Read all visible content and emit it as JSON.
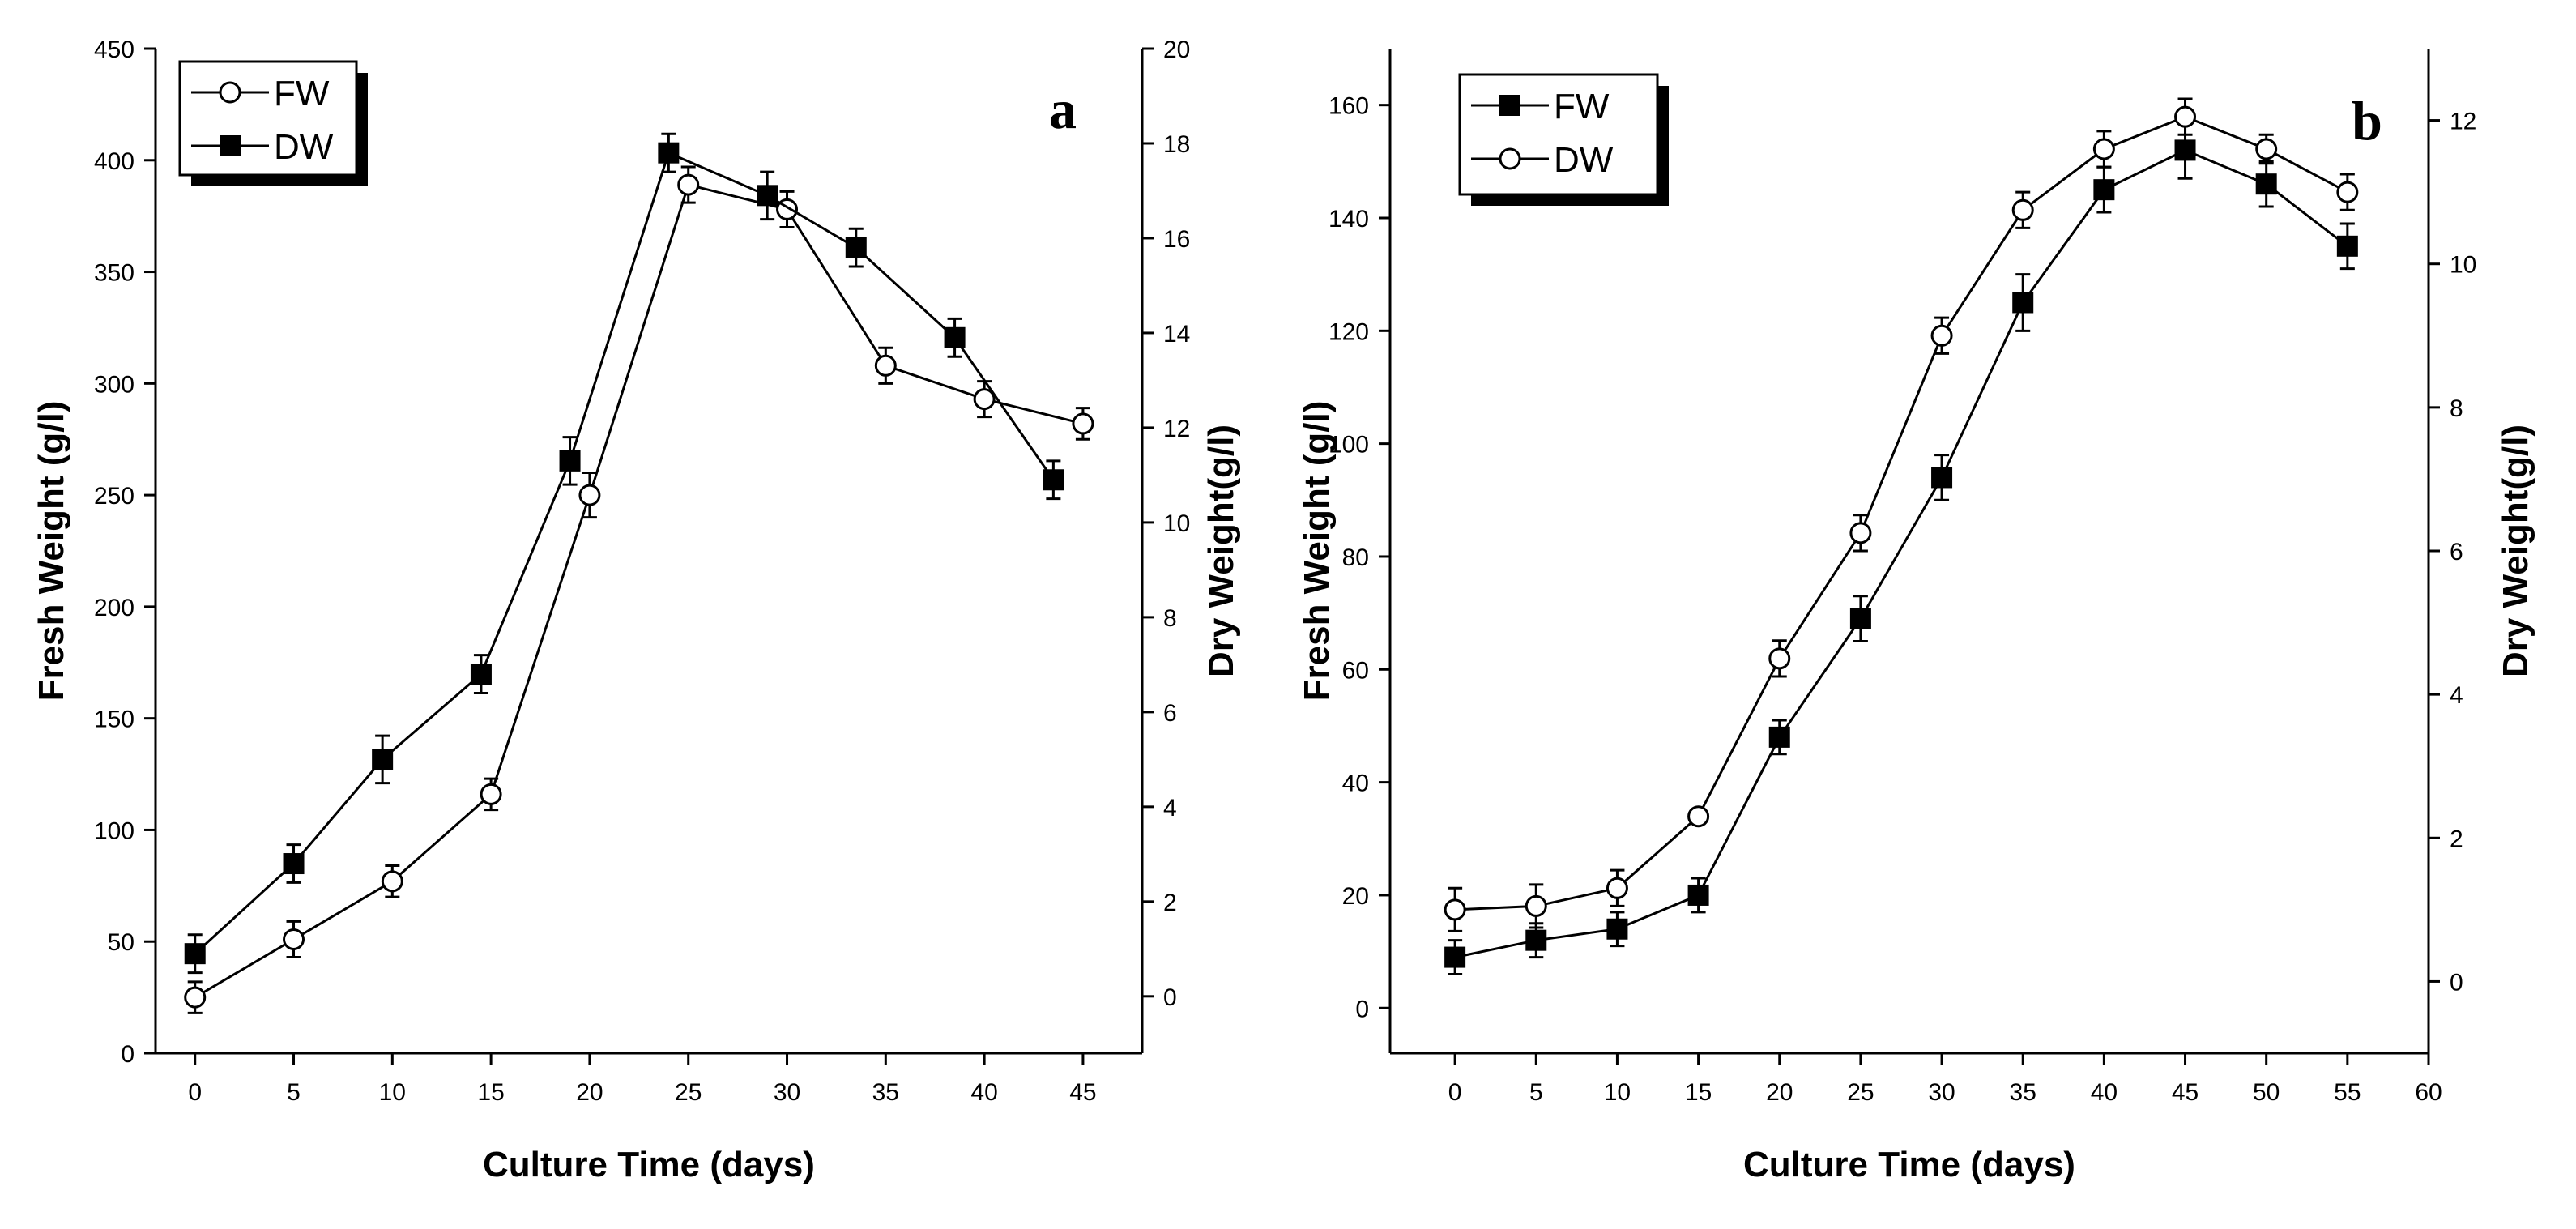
{
  "chart_data": [
    {
      "type": "line",
      "panel_label": "a",
      "xlabel": "Culture Time (days)",
      "ylabel": "Fresh Weight (g/l)",
      "y2label": "Dry Weight(g/l)",
      "xlim": [
        -2,
        48
      ],
      "ylim": [
        0,
        450
      ],
      "y2lim": [
        -1.2,
        20
      ],
      "x_ticks": [
        0,
        5,
        10,
        15,
        20,
        25,
        30,
        35,
        40,
        45
      ],
      "y_ticks": [
        0,
        50,
        100,
        150,
        200,
        250,
        300,
        350,
        400,
        450
      ],
      "y2_ticks": [
        0,
        2,
        4,
        6,
        8,
        10,
        12,
        14,
        16,
        18,
        20
      ],
      "legend_position": "top-left",
      "series": [
        {
          "name": "FW",
          "marker": "open-circle",
          "axis": "left",
          "x": [
            0,
            5,
            10,
            15,
            20,
            25,
            30,
            35,
            40,
            45
          ],
          "values": [
            25,
            51,
            77,
            116,
            250,
            389,
            378,
            308,
            293,
            282
          ],
          "errors": [
            7,
            8,
            7,
            7,
            10,
            8,
            8,
            8,
            8,
            7
          ]
        },
        {
          "name": "DW",
          "marker": "filled-square",
          "axis": "right",
          "x": [
            0,
            5,
            9.5,
            14.5,
            19,
            24,
            29,
            33.5,
            38.5,
            43.5
          ],
          "values": [
            0.9,
            2.8,
            5.0,
            6.8,
            11.3,
            17.8,
            16.9,
            15.8,
            13.9,
            10.9
          ],
          "errors": [
            0.4,
            0.4,
            0.5,
            0.4,
            0.5,
            0.4,
            0.5,
            0.4,
            0.4,
            0.4
          ]
        }
      ]
    },
    {
      "type": "line",
      "panel_label": "b",
      "xlabel": "Culture Time (days)",
      "ylabel": "Fresh Weight (g/l)",
      "y2label": "Dry Weight(g/l)",
      "xlim": [
        -4,
        60
      ],
      "ylim": [
        -8,
        170
      ],
      "y2lim": [
        -1,
        13
      ],
      "x_ticks": [
        0,
        5,
        10,
        15,
        20,
        25,
        30,
        35,
        40,
        45,
        50,
        55,
        60
      ],
      "y_ticks": [
        0,
        20,
        40,
        60,
        80,
        100,
        120,
        140,
        160
      ],
      "y2_ticks": [
        0,
        2,
        4,
        6,
        8,
        10,
        12
      ],
      "legend_position": "top-left",
      "series": [
        {
          "name": "FW",
          "marker": "filled-square",
          "axis": "left",
          "x": [
            0,
            5,
            10,
            15,
            20,
            25,
            30,
            35,
            40,
            45,
            50,
            55
          ],
          "values": [
            9,
            12,
            14,
            20,
            48,
            69,
            94,
            125,
            145,
            152,
            146,
            135
          ],
          "errors": [
            3,
            3,
            3,
            3,
            3,
            4,
            4,
            5,
            4,
            5,
            4,
            4
          ]
        },
        {
          "name": "DW",
          "marker": "open-circle",
          "axis": "right",
          "x": [
            0,
            5,
            10,
            15,
            20,
            25,
            30,
            35,
            40,
            45,
            50,
            55
          ],
          "values": [
            1.0,
            1.05,
            1.3,
            2.3,
            4.5,
            6.25,
            9.0,
            10.75,
            11.6,
            12.05,
            11.6,
            11.0
          ],
          "errors": [
            0.3,
            0.3,
            0.25,
            0.1,
            0.25,
            0.25,
            0.25,
            0.25,
            0.25,
            0.25,
            0.2,
            0.25
          ]
        }
      ]
    }
  ]
}
